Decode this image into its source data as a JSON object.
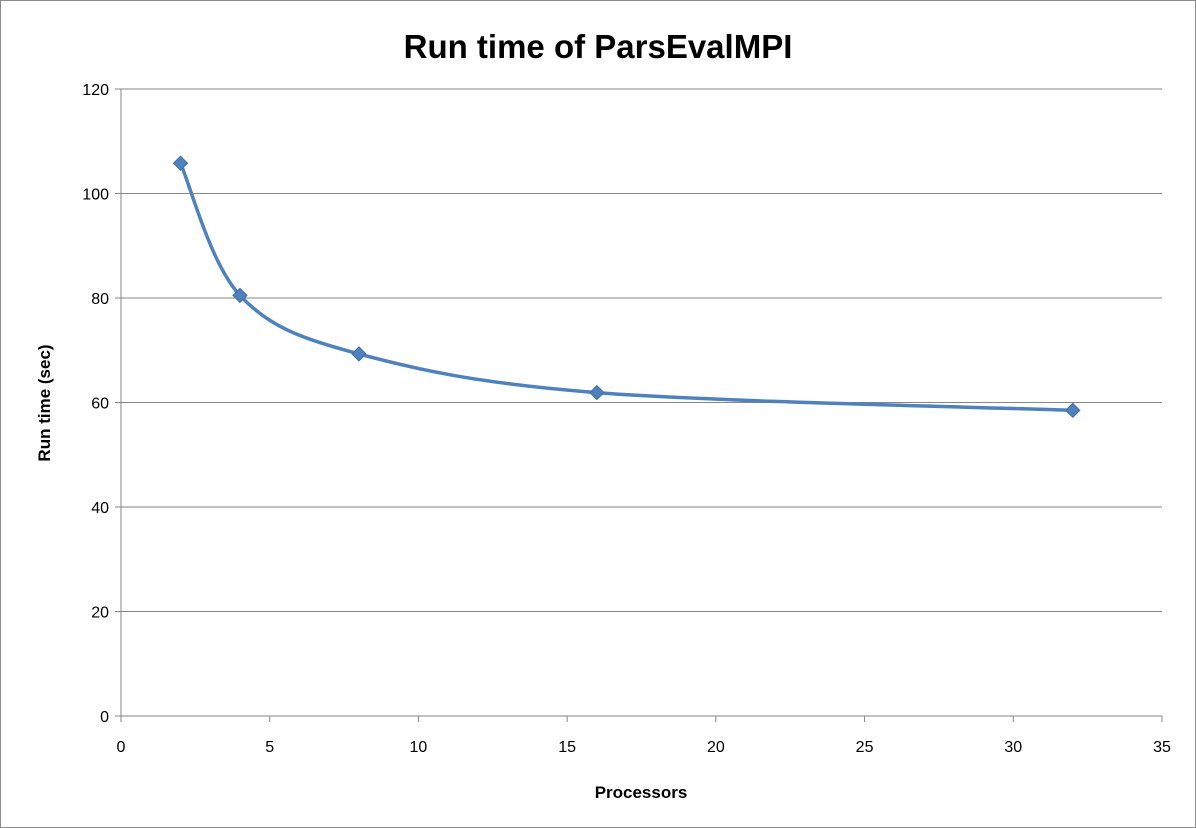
{
  "chart_data": {
    "type": "scatter",
    "title": "Run time of ParsEvalMPI",
    "xlabel": "Processors",
    "ylabel": "Run time (sec)",
    "xlim": [
      0,
      35
    ],
    "ylim": [
      0,
      120
    ],
    "x_ticks": [
      0,
      5,
      10,
      15,
      20,
      25,
      30,
      35
    ],
    "y_ticks": [
      0,
      20,
      40,
      60,
      80,
      100,
      120
    ],
    "grid": "horizontal",
    "legend": "none",
    "smooth_lines": true,
    "marker": "diamond",
    "series": [
      {
        "x": [
          2,
          4,
          8,
          16,
          32
        ],
        "y": [
          105.8,
          80.5,
          69.3,
          61.9,
          58.5
        ],
        "color": "#4F81BD"
      }
    ]
  }
}
